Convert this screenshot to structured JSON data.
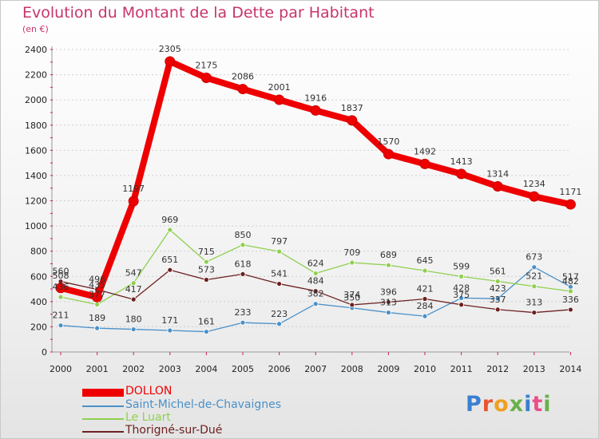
{
  "logo": "Proxiti",
  "chart_data": {
    "type": "line",
    "title": "Evolution du Montant de la Dette par Habitant",
    "subtitle": "(en €)",
    "x": [
      "2000",
      "2001",
      "2002",
      "2003",
      "2004",
      "2005",
      "2006",
      "2007",
      "2008",
      "2009",
      "2010",
      "2011",
      "2012",
      "2013",
      "2014"
    ],
    "ylim": [
      0,
      2400
    ],
    "yticks": [
      0,
      200,
      400,
      600,
      800,
      1000,
      1200,
      1400,
      1600,
      1800,
      2000,
      2200,
      2400
    ],
    "grid": true,
    "legend_position": "bottom-left",
    "series": [
      {
        "name": "DOLLON",
        "color": "#ee0000",
        "values": [
          508,
          435,
          1197,
          2305,
          2175,
          2086,
          2001,
          1916,
          1837,
          1570,
          1492,
          1413,
          1314,
          1234,
          1171
        ]
      },
      {
        "name": "Saint-Michel-de-Chavaignes",
        "color": "#4a90c8",
        "values": [
          211,
          189,
          180,
          171,
          161,
          233,
          223,
          382,
          350,
          313,
          284,
          428,
          423,
          673,
          517
        ]
      },
      {
        "name": "Le Luart",
        "color": "#8fd050",
        "values": [
          436,
          377,
          547,
          969,
          715,
          850,
          797,
          624,
          709,
          689,
          645,
          599,
          561,
          521,
          482
        ]
      },
      {
        "name": "Thorigné-sur-Dué",
        "color": "#6e2020",
        "values": [
          560,
          496,
          417,
          651,
          573,
          618,
          541,
          484,
          374,
          396,
          421,
          375,
          337,
          313,
          336
        ]
      }
    ]
  }
}
